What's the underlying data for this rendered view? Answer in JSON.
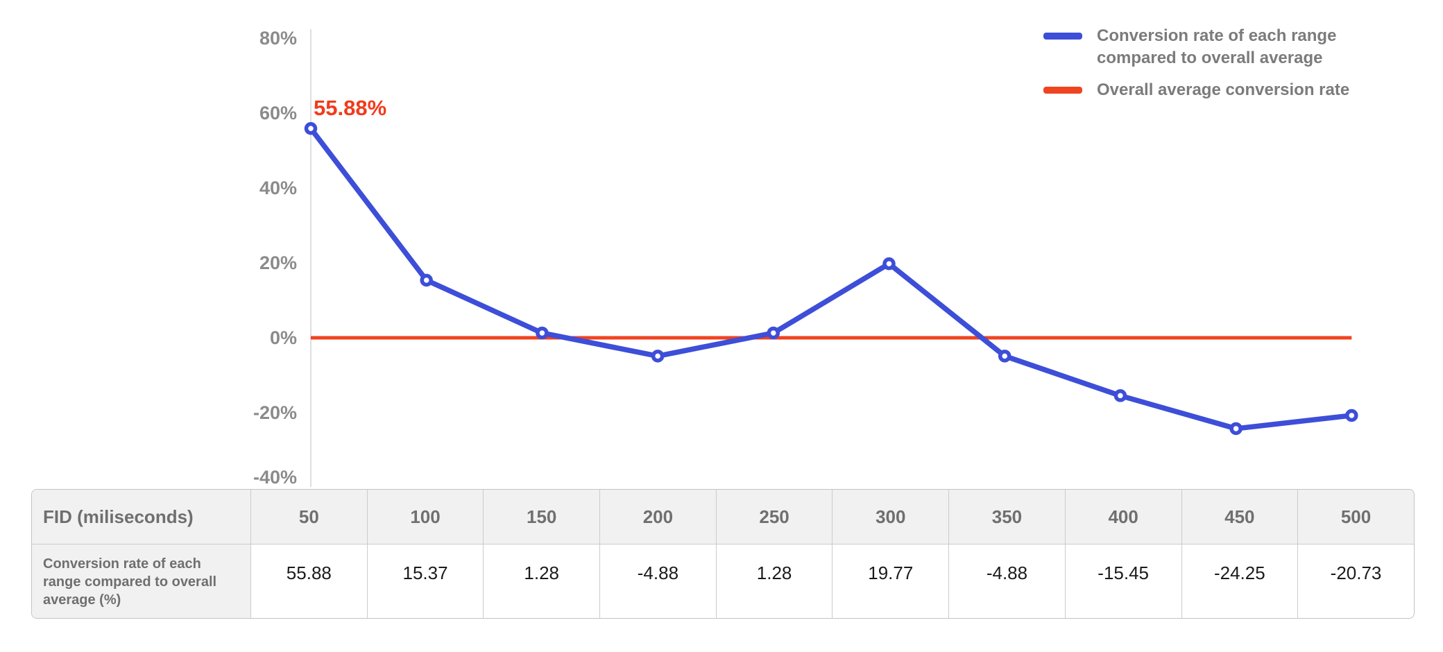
{
  "colors": {
    "series_blue": "#3d4ed8",
    "average_red": "#f0431f",
    "annotation_red": "#f23a1b",
    "axis_label_gray": "#8b8b8b",
    "axis_line_gray": "#dedede",
    "legend_text_gray": "#7b7b7b",
    "table_header_text": "#6f6f6f",
    "table_value_text": "#1b1b1b"
  },
  "legend": {
    "series_label": "Conversion rate of each range compared to overall average",
    "average_label": "Overall average conversion rate"
  },
  "annotation": {
    "text": "55.88%"
  },
  "chart_data": {
    "type": "line",
    "x": [
      50,
      100,
      150,
      200,
      250,
      300,
      350,
      400,
      450,
      500
    ],
    "series": [
      {
        "name": "Conversion rate of each range compared to overall average",
        "values": [
          55.88,
          15.37,
          1.28,
          -4.88,
          1.28,
          19.77,
          -4.88,
          -15.45,
          -24.25,
          -20.73
        ],
        "color": "#3d4ed8",
        "markers": "open-circle"
      },
      {
        "name": "Overall average conversion rate",
        "values": [
          0,
          0,
          0,
          0,
          0,
          0,
          0,
          0,
          0,
          0
        ],
        "color": "#f0431f",
        "markers": "none"
      }
    ],
    "title": "",
    "xlabel": "FID (miliseconds)",
    "ylabel": "",
    "ylim": [
      -40,
      80
    ],
    "ytick_step": 20,
    "ytick_labels": [
      "80%",
      "60%",
      "40%",
      "20%",
      "0%",
      "-20%",
      "-40%"
    ],
    "grid": false,
    "legend_position": "top-right",
    "annotation_text": "55.88%",
    "annotation_target_x": 50
  },
  "table": {
    "header_label": "FID (miliseconds)",
    "row_label": "Conversion rate of each range compared to overall average (%)",
    "columns": [
      "50",
      "100",
      "150",
      "200",
      "250",
      "300",
      "350",
      "400",
      "450",
      "500"
    ],
    "values": [
      "55.88",
      "15.37",
      "1.28",
      "-4.88",
      "1.28",
      "19.77",
      "-4.88",
      "-15.45",
      "-24.25",
      "-20.73"
    ]
  }
}
